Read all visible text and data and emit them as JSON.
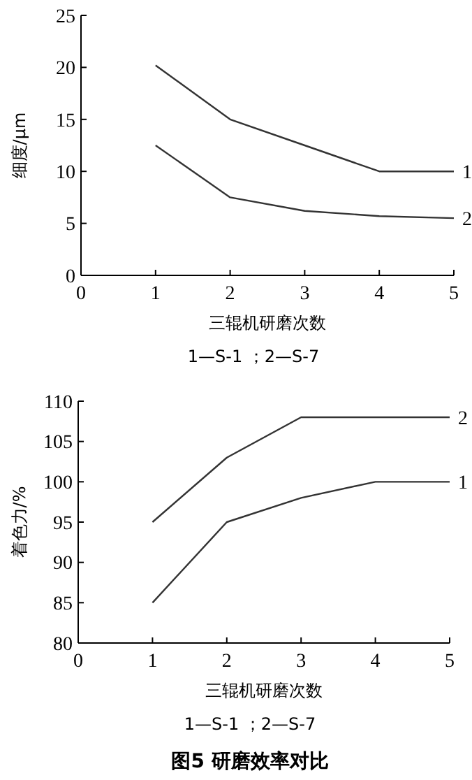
{
  "chart_data": [
    {
      "type": "line",
      "xlabel": "三辊机研磨次数",
      "ylabel": "细度/μm",
      "x": [
        1,
        2,
        3,
        4,
        5
      ],
      "xlim": [
        0,
        5
      ],
      "xticks": [
        0,
        1,
        2,
        3,
        4,
        5
      ],
      "ylim": [
        0,
        25
      ],
      "yticks": [
        0,
        5,
        10,
        15,
        20,
        25
      ],
      "grid": false,
      "marker": "none",
      "line_style": "solid",
      "series": [
        {
          "name": "1",
          "color": "#333333",
          "values": [
            20.2,
            15,
            12.5,
            10,
            10
          ]
        },
        {
          "name": "2",
          "color": "#333333",
          "values": [
            12.5,
            7.5,
            6.2,
            5.7,
            5.5
          ]
        }
      ],
      "annotations": [
        "1—S-1 ；2—S-7"
      ]
    },
    {
      "type": "line",
      "xlabel": "三辊机研磨次数",
      "ylabel": "着色力/%",
      "x": [
        1,
        2,
        3,
        4,
        5
      ],
      "xlim": [
        0,
        5
      ],
      "xticks": [
        0,
        1,
        2,
        3,
        4,
        5
      ],
      "ylim": [
        80,
        110
      ],
      "yticks": [
        80,
        85,
        90,
        95,
        100,
        105,
        110
      ],
      "grid": false,
      "marker": "none",
      "line_style": "solid",
      "series": [
        {
          "name": "1",
          "color": "#333333",
          "values": [
            85,
            95,
            98,
            100,
            100
          ]
        },
        {
          "name": "2",
          "color": "#333333",
          "values": [
            95,
            103,
            108,
            108,
            108
          ]
        }
      ],
      "annotations": [
        "1—S-1 ；2—S-7",
        "图5  研磨效率对比"
      ]
    }
  ]
}
